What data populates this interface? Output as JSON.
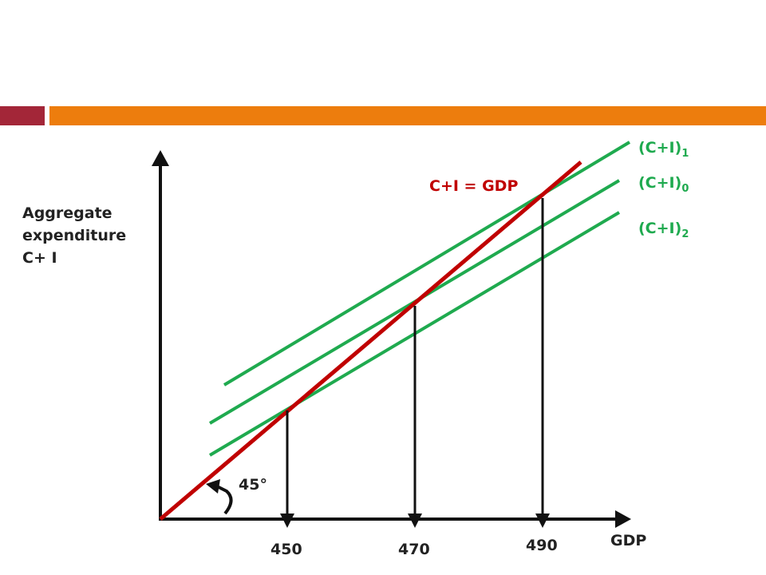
{
  "colors": {
    "red_bar": "#a32638",
    "orange_bar": "#ed7d0d",
    "green": "#1faa4f",
    "red_line": "#c00000",
    "axis": "#111111"
  },
  "y_axis_label": {
    "line1": "Aggregate",
    "line2": "expenditure",
    "line3": "C+ I"
  },
  "x_axis_label": "GDP",
  "line_45_label": "C+I = GDP",
  "angle_label": "45°",
  "curves": [
    {
      "base": "(C+I)",
      "sub": "1"
    },
    {
      "base": "(C+I)",
      "sub": "0"
    },
    {
      "base": "(C+I)",
      "sub": "2"
    }
  ],
  "x_ticks": [
    "450",
    "470",
    "490"
  ]
}
